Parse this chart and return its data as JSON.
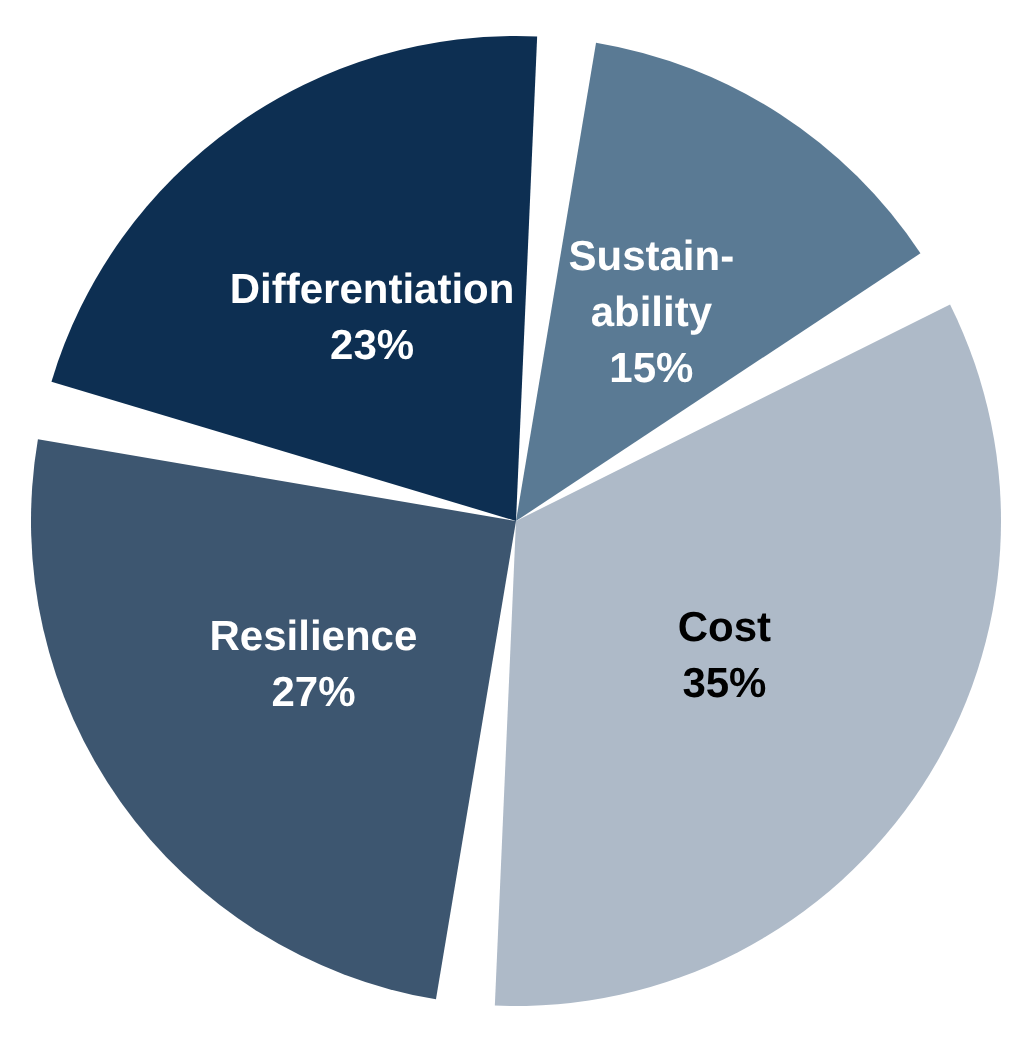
{
  "chart_data": {
    "type": "pie",
    "categories": [
      "Sustain-\nability",
      "Cost",
      "Resilience",
      "Differentiation"
    ],
    "values": [
      15,
      35,
      27,
      23
    ],
    "colors": [
      "#5a7a94",
      "#aebac8",
      "#3d5670",
      "#0d2f52"
    ],
    "value_labels": [
      "15%",
      "35%",
      "27%",
      "23%"
    ]
  }
}
